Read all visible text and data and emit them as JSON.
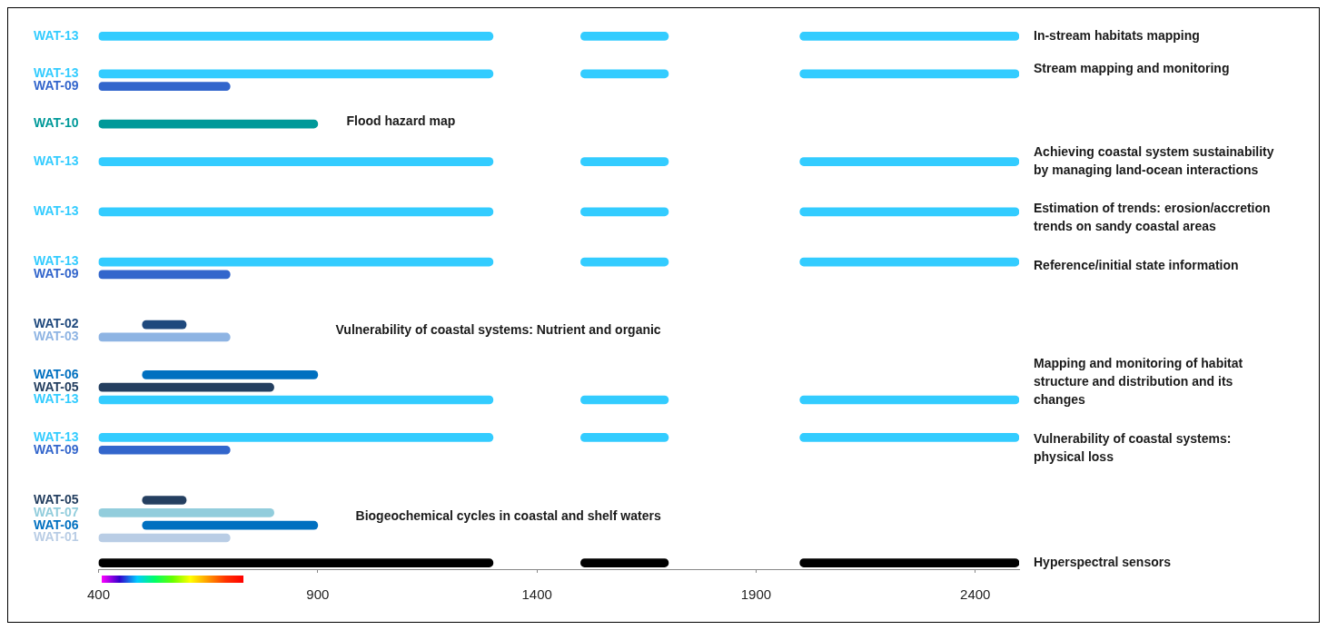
{
  "chart_data": {
    "type": "bar",
    "orientation": "horizontal",
    "categories": [
      "WAT-13",
      null,
      null,
      "WAT-13",
      "WAT-09",
      null,
      null,
      "WAT-10",
      null,
      null,
      "WAT-13",
      null,
      null,
      null,
      "WAT-13",
      null,
      null,
      null,
      "WAT-13",
      "WAT-09",
      null,
      null,
      null,
      "WAT-02",
      "WAT-03",
      null,
      null,
      "WAT-06",
      "WAT-05",
      "WAT-13",
      null,
      null,
      "WAT-13",
      "WAT-09",
      null,
      null,
      null,
      "WAT-05",
      "WAT-07",
      "WAT-06",
      "WAT-01",
      null,
      null
    ],
    "series": [
      {
        "values": [
          900,
          null,
          null,
          900,
          300,
          null,
          null,
          500,
          null,
          null,
          900,
          null,
          null,
          null,
          900,
          null,
          null,
          null,
          900,
          300,
          null,
          null,
          null,
          100,
          300,
          null,
          null,
          400,
          400,
          900,
          null,
          null,
          900,
          300,
          null,
          null,
          null,
          100,
          400,
          400,
          300,
          null,
          900
        ],
        "base": [
          400,
          null,
          null,
          400,
          400,
          null,
          null,
          400,
          null,
          null,
          400,
          null,
          null,
          null,
          400,
          null,
          null,
          null,
          400,
          400,
          null,
          null,
          null,
          500,
          400,
          null,
          null,
          500,
          400,
          400,
          null,
          null,
          400,
          400,
          null,
          null,
          null,
          500,
          400,
          500,
          400,
          null,
          400
        ],
        "colors": [
          "#33ccff",
          null,
          null,
          "#33ccff",
          "#3366cc",
          null,
          null,
          "#009999",
          null,
          null,
          "#33ccff",
          null,
          null,
          null,
          "#33ccff",
          null,
          null,
          null,
          "#33ccff",
          "#3366cc",
          null,
          null,
          null,
          "#1f497d",
          "#8eb4e3",
          null,
          null,
          "#0070c0",
          "#243f60",
          "#33ccff",
          null,
          null,
          "#33ccff",
          "#3366cc",
          null,
          null,
          null,
          "#243f60",
          "#92cddc",
          "#0070c0",
          "#b9cde5",
          null,
          "#000000"
        ]
      },
      {
        "values": [
          200,
          null,
          null,
          200,
          null,
          null,
          null,
          null,
          null,
          null,
          200,
          null,
          null,
          null,
          200,
          null,
          null,
          null,
          200,
          null,
          null,
          null,
          null,
          null,
          null,
          null,
          null,
          null,
          null,
          200,
          null,
          null,
          200,
          null,
          null,
          null,
          null,
          null,
          null,
          null,
          null,
          null,
          200
        ],
        "base": [
          1500,
          null,
          null,
          1500,
          null,
          null,
          null,
          null,
          null,
          null,
          1500,
          null,
          null,
          null,
          1500,
          null,
          null,
          null,
          1500,
          null,
          null,
          null,
          null,
          null,
          null,
          null,
          null,
          null,
          null,
          1500,
          null,
          null,
          1500,
          null,
          null,
          null,
          null,
          null,
          null,
          null,
          null,
          null,
          1500
        ],
        "colors": [
          "#33ccff",
          null,
          null,
          "#33ccff",
          null,
          null,
          null,
          null,
          null,
          null,
          "#33ccff",
          null,
          null,
          null,
          "#33ccff",
          null,
          null,
          null,
          "#33ccff",
          null,
          null,
          null,
          null,
          null,
          null,
          null,
          null,
          null,
          null,
          "#33ccff",
          null,
          null,
          "#33ccff",
          null,
          null,
          null,
          null,
          null,
          null,
          null,
          null,
          null,
          "#000000"
        ]
      },
      {
        "values": [
          500,
          null,
          null,
          500,
          null,
          null,
          null,
          null,
          null,
          null,
          500,
          null,
          null,
          null,
          500,
          null,
          null,
          null,
          500,
          null,
          null,
          null,
          null,
          null,
          null,
          null,
          null,
          null,
          null,
          500,
          null,
          null,
          500,
          null,
          null,
          null,
          null,
          null,
          null,
          null,
          null,
          null,
          500
        ],
        "base": [
          2000,
          null,
          null,
          2000,
          null,
          null,
          null,
          null,
          null,
          null,
          2000,
          null,
          null,
          null,
          2000,
          null,
          null,
          null,
          2000,
          null,
          null,
          null,
          null,
          null,
          null,
          null,
          null,
          null,
          null,
          2000,
          null,
          null,
          2000,
          null,
          null,
          null,
          null,
          null,
          null,
          null,
          null,
          null,
          2000
        ],
        "colors": [
          "#33ccff",
          null,
          null,
          "#33ccff",
          null,
          null,
          null,
          null,
          null,
          null,
          "#33ccff",
          null,
          null,
          null,
          "#33ccff",
          null,
          null,
          null,
          "#33ccff",
          null,
          null,
          null,
          null,
          null,
          null,
          null,
          null,
          null,
          null,
          "#33ccff",
          null,
          null,
          "#33ccff",
          null,
          null,
          null,
          null,
          null,
          null,
          null,
          null,
          null,
          "#000000"
        ]
      }
    ],
    "xlim": [
      400,
      2500
    ],
    "xticks": [
      400,
      900,
      1400,
      1900,
      2400
    ],
    "annotations": [
      "In-stream habitats mapping",
      "Stream mapping and monitoring",
      "Flood hazard map",
      "Achieving coastal system sustainability\nby managing land-ocean interactions",
      "Estimation of trends: erosion/accretion\ntrends on sandy coastal areas",
      "Reference/initial state information",
      "Vulnerability of coastal systems: Nutrient and organic",
      "Mapping and monitoring of habitat\nstructure and distribution and its\nchanges",
      "Vulnerability of coastal systems:\nphysical loss",
      "Biogeochemical cycles in coastal and shelf waters",
      "Hyperspectral sensors"
    ]
  }
}
